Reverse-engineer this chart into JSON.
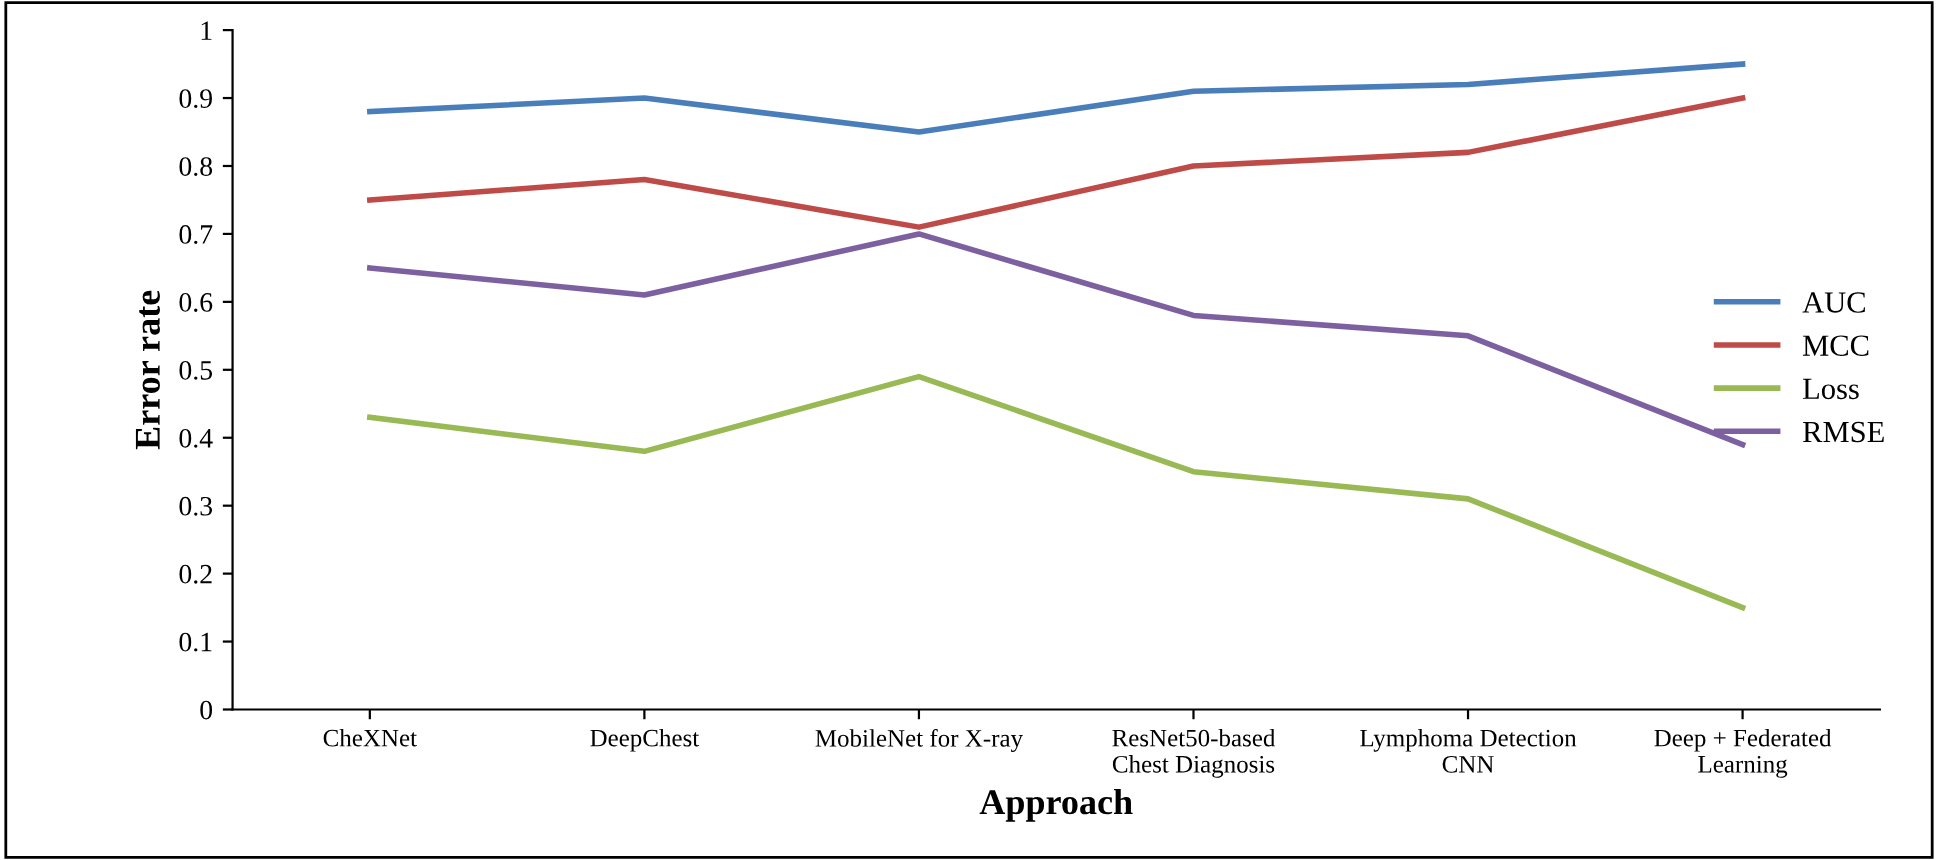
{
  "chart_data": {
    "type": "line",
    "xlabel": "Approach",
    "ylabel": "Error rate",
    "categories": [
      "CheXNet",
      "DeepChest",
      "MobileNet for X-ray",
      "ResNet50-based\nChest Diagnosis",
      "Lymphoma Detection\nCNN",
      "Deep + Federated\nLearning"
    ],
    "series": [
      {
        "name": "AUC",
        "color": "#4a7ebb",
        "values": [
          0.88,
          0.9,
          0.85,
          0.91,
          0.92,
          0.95
        ]
      },
      {
        "name": "MCC",
        "color": "#be4b48",
        "values": [
          0.75,
          0.78,
          0.71,
          0.8,
          0.82,
          0.9
        ]
      },
      {
        "name": "Loss",
        "color": "#98b954",
        "values": [
          0.43,
          0.38,
          0.49,
          0.35,
          0.31,
          0.15
        ]
      },
      {
        "name": "RMSE",
        "color": "#7d60a0",
        "values": [
          0.65,
          0.61,
          0.7,
          0.58,
          0.55,
          0.39
        ]
      }
    ],
    "ylim": [
      0,
      1
    ],
    "yticks": [
      0,
      0.1,
      0.2,
      0.3,
      0.4,
      0.5,
      0.6,
      0.7,
      0.8,
      0.9,
      1
    ],
    "grid": false,
    "legend": "right",
    "marker": "none",
    "line_style": "solid"
  }
}
